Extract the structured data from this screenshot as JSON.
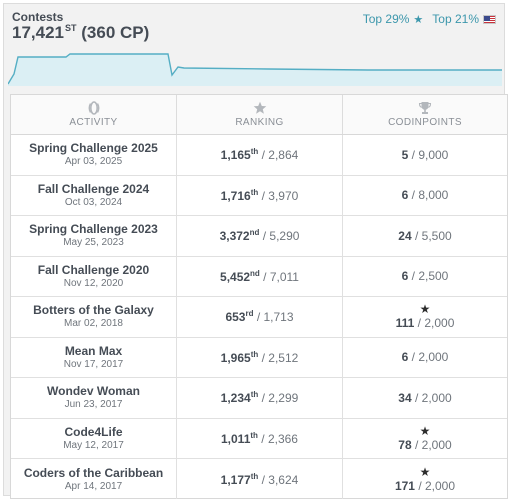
{
  "header": {
    "title": "Contests",
    "rank_value": "17,421",
    "rank_suffix": "ST",
    "cp": "(360 CP)",
    "top_global": "Top 29%",
    "top_country": "Top 21%",
    "country_flag": "us-flag-icon"
  },
  "colors": {
    "accent": "#3c97ac",
    "sparkline": "#55aec4",
    "text_dark": "#454c55"
  },
  "columns": [
    {
      "label": "ACTIVITY",
      "icon": "activity-icon"
    },
    {
      "label": "RANKING",
      "icon": "star-icon"
    },
    {
      "label": "CODINPOINTS",
      "icon": "trophy-icon"
    }
  ],
  "rows": [
    {
      "name": "Spring Challenge 2025",
      "date": "Apr 03, 2025",
      "rank": "1,165",
      "rank_suffix": "th",
      "total": "2,864",
      "points": "5",
      "max_points": "9,000",
      "medal": false
    },
    {
      "name": "Fall Challenge 2024",
      "date": "Oct 03, 2024",
      "rank": "1,716",
      "rank_suffix": "th",
      "total": "3,970",
      "points": "6",
      "max_points": "8,000",
      "medal": false
    },
    {
      "name": "Spring Challenge 2023",
      "date": "May 25, 2023",
      "rank": "3,372",
      "rank_suffix": "nd",
      "total": "5,290",
      "points": "24",
      "max_points": "5,500",
      "medal": false
    },
    {
      "name": "Fall Challenge 2020",
      "date": "Nov 12, 2020",
      "rank": "5,452",
      "rank_suffix": "nd",
      "total": "7,011",
      "points": "6",
      "max_points": "2,500",
      "medal": false
    },
    {
      "name": "Botters of the Galaxy",
      "date": "Mar 02, 2018",
      "rank": "653",
      "rank_suffix": "rd",
      "total": "1,713",
      "points": "111",
      "max_points": "2,000",
      "medal": true
    },
    {
      "name": "Mean Max",
      "date": "Nov 17, 2017",
      "rank": "1,965",
      "rank_suffix": "th",
      "total": "2,512",
      "points": "6",
      "max_points": "2,000",
      "medal": false
    },
    {
      "name": "Wondev Woman",
      "date": "Jun 23, 2017",
      "rank": "1,234",
      "rank_suffix": "th",
      "total": "2,299",
      "points": "34",
      "max_points": "2,000",
      "medal": false
    },
    {
      "name": "Code4Life",
      "date": "May 12, 2017",
      "rank": "1,011",
      "rank_suffix": "th",
      "total": "2,366",
      "points": "78",
      "max_points": "2,000",
      "medal": true
    },
    {
      "name": "Coders of the Caribbean",
      "date": "Apr 14, 2017",
      "rank": "1,177",
      "rank_suffix": "th",
      "total": "3,624",
      "points": "171",
      "max_points": "2,000",
      "medal": true
    }
  ]
}
